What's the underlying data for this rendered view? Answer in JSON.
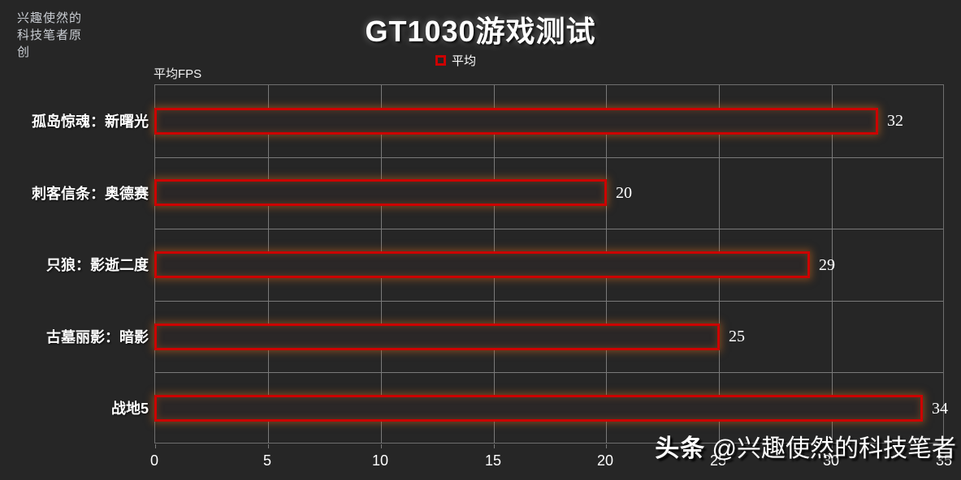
{
  "page": {
    "background": "#262626"
  },
  "watermark_top": {
    "text": "兴趣使然的科技笔者原创"
  },
  "watermark_bottom": {
    "brand": "头条",
    "handle": "@兴趣使然的科技笔者"
  },
  "chart_data": {
    "type": "bar",
    "orientation": "horizontal",
    "title": "GT1030游戏测试",
    "series_name": "平均",
    "legend_position": "top-center",
    "value_axis_title": "平均FPS",
    "categories": [
      "孤岛惊魂：新曙光",
      "刺客信条：奥德赛",
      "只狼：影逝二度",
      "古墓丽影：暗影",
      "战地5"
    ],
    "values": [
      32,
      20,
      29,
      25,
      34
    ],
    "xlim": [
      0,
      35
    ],
    "x_ticks": [
      0,
      5,
      10,
      15,
      20,
      25,
      30,
      35
    ],
    "grid": true,
    "colors": {
      "background": "#262626",
      "bar_fill": "#2b2727",
      "bar_border": "#cc0000",
      "bar_glow": "#be641e",
      "gridline": "#7a7a7a",
      "text": "#ffffff"
    }
  }
}
